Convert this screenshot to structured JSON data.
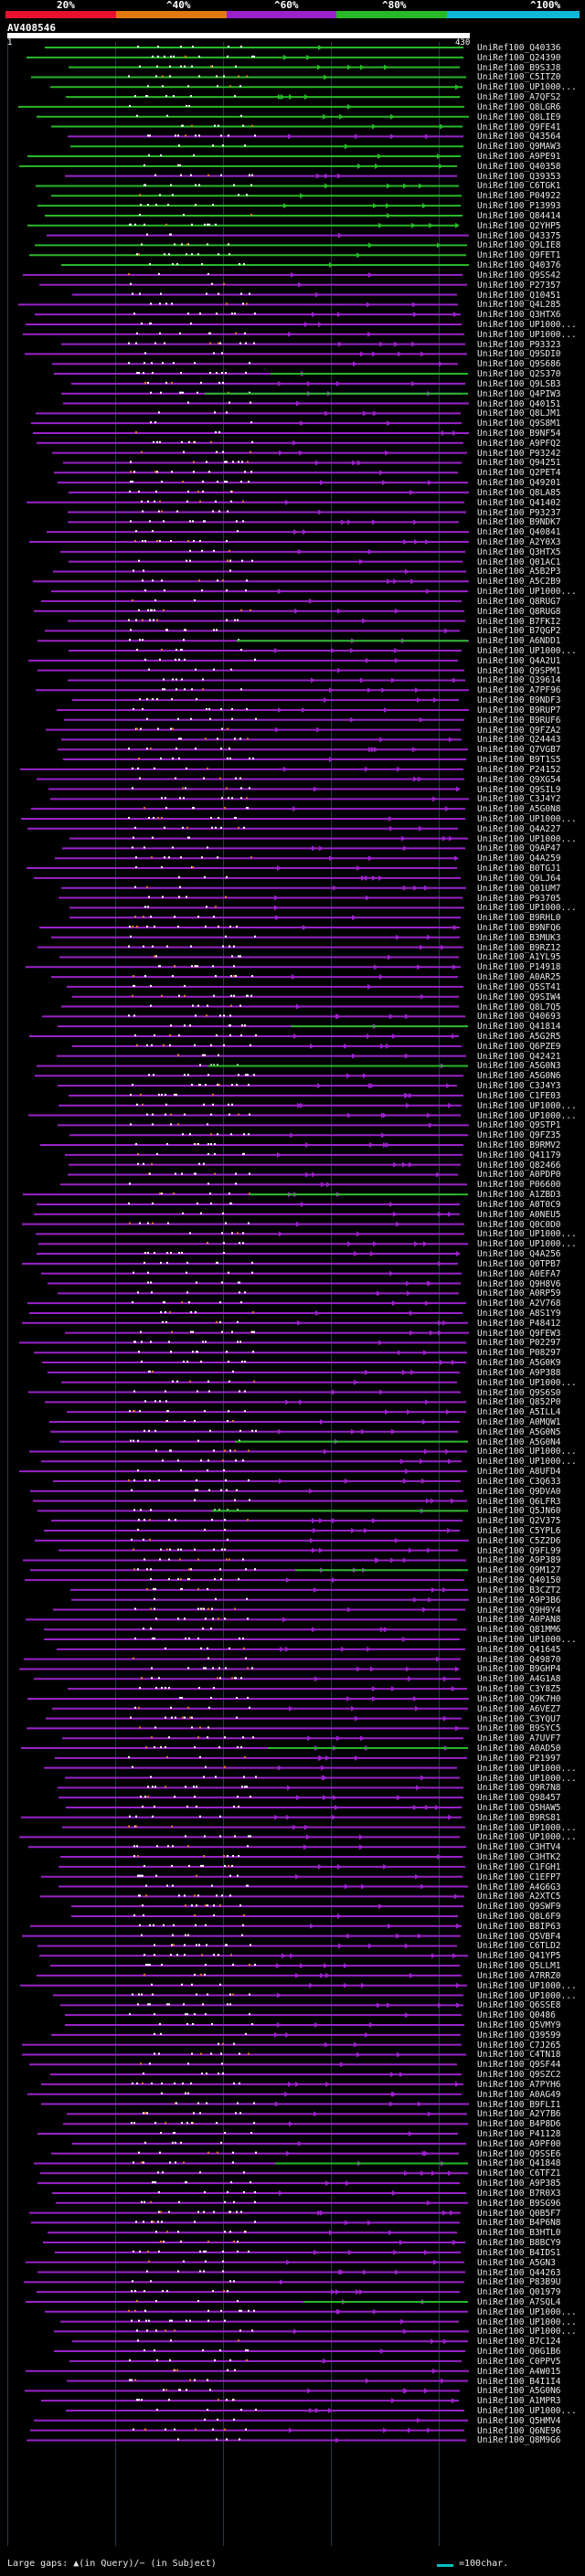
{
  "legend": {
    "ticks": [
      "20%",
      "^40%",
      "^60%",
      "^80%",
      "^100%"
    ],
    "colors": [
      "#e8112d",
      "#e07a10",
      "#9a22c8",
      "#28b828",
      "#10b8d8"
    ]
  },
  "query": {
    "title": "AV408546",
    "start": "1",
    "end": "430"
  },
  "hits": {
    "labels": [
      "UniRef100_Q40336",
      "UniRef100_Q24390",
      "UniRef100_B9S3J8",
      "UniRef100_C5ITZ0",
      "UniRef100_UP1000...",
      "UniRef100_A7QFS2",
      "UniRef100_Q8LGR6",
      "UniRef100_Q8LIE9",
      "UniRef100_Q9FE41",
      "UniRef100_Q43564",
      "UniRef100_Q9MAW3",
      "UniRef100_A9PE91",
      "UniRef100_Q40358",
      "UniRef100_Q39353",
      "UniRef100_C6TGK1",
      "UniRef100_P04922",
      "UniRef100_P13993",
      "UniRef100_Q84414",
      "UniRef100_Q2YHP5",
      "UniRef100_Q43375",
      "UniRef100_Q9LIE8",
      "UniRef100_Q9FET1",
      "UniRef100_Q40376",
      "UniRef100_Q9SS42",
      "UniRef100_P27357",
      "UniRef100_Q10451",
      "UniRef100_Q4L285",
      "UniRef100_Q3HTX6",
      "UniRef100_UP1000...",
      "UniRef100_UP1000...",
      "UniRef100_P93323",
      "UniRef100_Q9SDI0",
      "UniRef100_Q9S686",
      "UniRef100_Q2S370",
      "UniRef100_Q9LSB3",
      "UniRef100_Q4PIW3",
      "UniRef100_Q40151",
      "UniRef100_Q8LJM1",
      "UniRef100_Q9S8M1",
      "UniRef100_B9NF54",
      "UniRef100_A9PFQ2",
      "UniRef100_P93242",
      "UniRef100_Q94251",
      "UniRef100_Q2PET4",
      "UniRef100_Q49201",
      "UniRef100_Q8LA85",
      "UniRef100_Q41402",
      "UniRef100_P93237",
      "UniRef100_B9NDK7",
      "UniRef100_Q40841",
      "UniRef100_A2Y0X3",
      "UniRef100_Q3HTX5",
      "UniRef100_Q01AC1",
      "UniRef100_A5B2P3",
      "UniRef100_A5C2B9",
      "UniRef100_UP1000...",
      "UniRef100_Q8RUG7",
      "UniRef100_Q8RUG8",
      "UniRef100_B7FKI2",
      "UniRef100_B7QGP2",
      "UniRef100_A6NDD1",
      "UniRef100_UP1000...",
      "UniRef100_Q4A2U1",
      "UniRef100_Q9SPM1",
      "UniRef100_Q39614",
      "UniRef100_A7PF96",
      "UniRef100_B9NDF3",
      "UniRef100_B9RUP7",
      "UniRef100_B9RUF6",
      "UniRef100_Q9FZA2",
      "UniRef100_Q24443",
      "UniRef100_Q7VGB7",
      "UniRef100_B9T1S5",
      "UniRef100_P24152",
      "UniRef100_Q9XG54",
      "UniRef100_Q9SIL9",
      "UniRef100_C3J4Y2",
      "UniRef100_A5G0N8",
      "UniRef100_UP1000...",
      "UniRef100_Q4A227",
      "UniRef100_UP1000...",
      "UniRef100_Q9AP47",
      "UniRef100_Q4A259",
      "UniRef100_B0TGJ1",
      "UniRef100_Q9LJ64",
      "UniRef100_Q01UM7",
      "UniRef100_P93705",
      "UniRef100_UP1000...",
      "UniRef100_B9RHL0",
      "UniRef100_B9NFQ6",
      "UniRef100_B3MUK3",
      "UniRef100_B9RZ12",
      "UniRef100_A1YL95",
      "UniRef100_P14918",
      "UniRef100_A0AR25",
      "UniRef100_Q5ST41",
      "UniRef100_Q9SIW4",
      "UniRef100_Q8L7Q5",
      "UniRef100_Q40693",
      "UniRef100_Q41814",
      "UniRef100_A5G2R5",
      "UniRef100_Q6PZE9",
      "UniRef100_Q42421",
      "UniRef100_A5G0N3",
      "UniRef100_A5G0N6",
      "UniRef100_C3J4Y3",
      "UniRef100_C1FE03",
      "UniRef100_UP1000...",
      "UniRef100_UP1000...",
      "UniRef100_Q9STP1",
      "UniRef100_Q9FZ35",
      "UniRef100_B9RMV2",
      "UniRef100_Q41179",
      "UniRef100_Q82466",
      "UniRef100_A0PDP0",
      "UniRef100_P06600",
      "UniRef100_A1ZBD3",
      "UniRef100_A0T0C9",
      "UniRef100_A0NEU5",
      "UniRef100_Q0C0D0",
      "UniRef100_UP1000...",
      "UniRef100_UP1000...",
      "UniRef100_Q4A256",
      "UniRef100_Q0TPB7",
      "UniRef100_A0EFA7",
      "UniRef100_Q9H8V6",
      "UniRef100_A0RP59",
      "UniRef100_A2V768",
      "UniRef100_A8S1Y9",
      "UniRef100_P48412",
      "UniRef100_Q9FEW3",
      "UniRef100_P02297",
      "UniRef100_P08297",
      "UniRef100_A5G0K9",
      "UniRef100_A9P388",
      "UniRef100_UP1000...",
      "UniRef100_Q9S6S0",
      "UniRef100_Q852P0",
      "UniRef100_A5ILL4",
      "UniRef100_A0MQW1",
      "UniRef100_A5G0N5",
      "UniRef100_A5G0N4",
      "UniRef100_UP1000...",
      "UniRef100_UP1000...",
      "UniRef100_A8UFD4",
      "UniRef100_C3Q633",
      "UniRef100_Q9DVA0",
      "UniRef100_Q6LFR3",
      "UniRef100_Q5JN60",
      "UniRef100_Q2V375",
      "UniRef100_C5YPL6",
      "UniRef100_C5Z2D6",
      "UniRef100_Q9FL99",
      "UniRef100_A9P389",
      "UniRef100_Q9M127",
      "UniRef100_Q40150",
      "UniRef100_B3CZT2",
      "UniRef100_A9P3B6",
      "UniRef100_Q9H9Y4",
      "UniRef100_A0PAN8",
      "UniRef100_Q81MM6",
      "UniRef100_UP1000...",
      "UniRef100_Q41645",
      "UniRef100_Q49870",
      "UniRef100_B9GHP4",
      "UniRef100_A4G1A8",
      "UniRef100_C3Y8Z5",
      "UniRef100_Q9K7H0",
      "UniRef100_A6VEZ7",
      "UniRef100_C3YQU7",
      "UniRef100_B9SYC5",
      "UniRef100_A7UVF7",
      "UniRef100_A0AD50",
      "UniRef100_P21997",
      "UniRef100_UP1000...",
      "UniRef100_UP1000...",
      "UniRef100_Q9R7N8",
      "UniRef100_Q98457",
      "UniRef100_Q5HAW5",
      "UniRef100_B9RS81",
      "UniRef100_UP1000...",
      "UniRef100_UP1000...",
      "UniRef100_C3HTV4",
      "UniRef100_C3HTK2",
      "UniRef100_C1FGH1",
      "UniRef100_C1EFP7",
      "UniRef100_A4G6G3",
      "UniRef100_A2XTC5",
      "UniRef100_Q9SWF9",
      "UniRef100_Q8L6F9",
      "UniRef100_B8IP63",
      "UniRef100_Q5VBF4",
      "UniRef100_C6TLD2",
      "UniRef100_Q41YP5",
      "UniRef100_Q5LLM1",
      "UniRef100_A7RRZ0",
      "UniRef100_UP1000...",
      "UniRef100_UP1000...",
      "UniRef100_Q6SSE8",
      "UniRef100_Q0486",
      "UniRef100_Q5VMY9",
      "UniRef100_Q39599",
      "UniRef100_C7J265",
      "UniRef100_C4TN18",
      "UniRef100_Q9SF44",
      "UniRef100_Q9SZC2",
      "UniRef100_A7PYH6",
      "UniRef100_A0AG49",
      "UniRef100_B9FLI1",
      "UniRef100_A2Y7B6",
      "UniRef100_B4P8D6",
      "UniRef100_P41128",
      "UniRef100_A9PF00",
      "UniRef100_Q9SSE6",
      "UniRef100_Q41848",
      "UniRef100_C6TFZ1",
      "UniRef100_A9P385",
      "UniRef100_B7R0X3",
      "UniRef100_B9SG96",
      "UniRef100_Q0B5F7",
      "UniRef100_B4P6N8",
      "UniRef100_B3HTL0",
      "UniRef100_B8BCY9",
      "UniRef100_B4IDS1",
      "UniRef100_A5GN3",
      "UniRef100_Q44263",
      "UniRef100_P83B9U",
      "UniRef100_Q01979",
      "UniRef100_A7SQL4",
      "UniRef100_UP1000...",
      "UniRef100_UP1000...",
      "UniRef100_UP1000...",
      "UniRef100_B7C124",
      "UniRef100_Q0G1B6",
      "UniRef100_C0PPV5",
      "UniRef100_A4W015",
      "UniRef100_B4I1I4",
      "UniRef100_A5G0N6",
      "UniRef100_A1MPR3",
      "UniRef100_UP1000...",
      "UniRef100_Q5HMV4",
      "UniRef100_Q6NE96",
      "UniRef100_Q8M9G6"
    ]
  },
  "footer": {
    "gaps_text": "Large gaps: ▲(in Query)/− (in Subject)",
    "scale_text": "=100char."
  }
}
